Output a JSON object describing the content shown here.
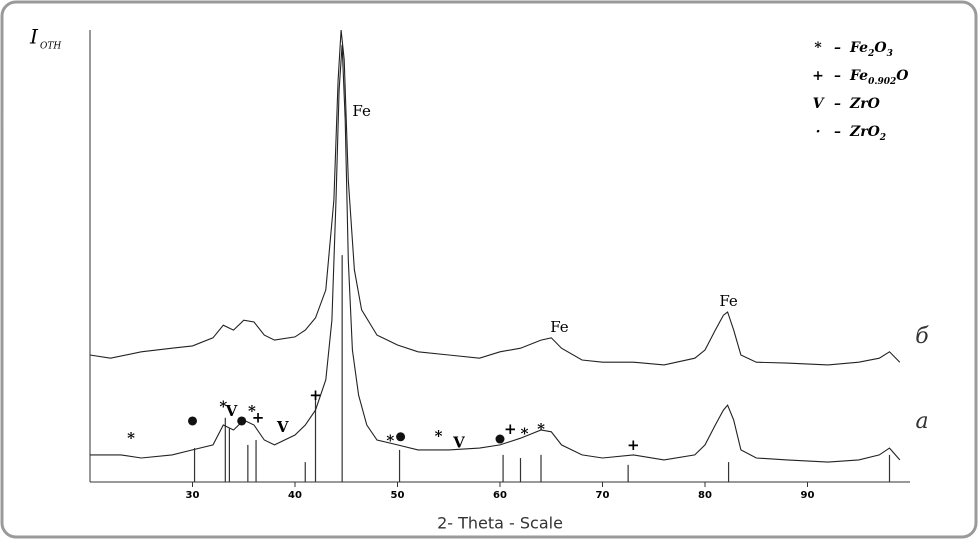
{
  "chart_data": {
    "type": "line",
    "y_label": [
      "I",
      "ОТН"
    ],
    "x_label": "2- Theta - Scale",
    "xlim": [
      20,
      100
    ],
    "ylim": [
      0,
      100
    ],
    "xticks": [
      30,
      40,
      50,
      60,
      70,
      80,
      90
    ],
    "series": [
      {
        "name": "б",
        "color": "#222",
        "x": [
          20,
          22,
          25,
          28,
          30,
          32,
          33,
          34,
          35,
          36,
          37,
          38,
          40,
          41,
          42,
          43,
          43.8,
          44.2,
          44.5,
          44.8,
          45.2,
          45.8,
          46.5,
          48,
          50,
          52,
          55,
          58,
          60,
          62,
          64,
          65,
          66,
          68,
          70,
          73,
          76,
          79,
          80,
          81,
          81.8,
          82.2,
          82.8,
          83.5,
          85,
          88,
          92,
          95,
          97,
          98,
          99
        ],
        "values": [
          28.1,
          27.4,
          28.8,
          29.6,
          30.1,
          31.9,
          34.7,
          33.6,
          35.8,
          35.4,
          32.5,
          31.4,
          32.1,
          33.6,
          36.3,
          42.5,
          62.4,
          88.9,
          100,
          93.4,
          66.8,
          46.9,
          38.1,
          32.5,
          30.3,
          28.8,
          28.1,
          27.4,
          28.8,
          29.6,
          31.4,
          31.9,
          29.6,
          27.0,
          26.5,
          26.5,
          25.9,
          27.4,
          29.2,
          33.6,
          36.9,
          37.6,
          33.6,
          28.1,
          26.5,
          26.3,
          25.9,
          26.5,
          27.4,
          28.8,
          26.5
        ]
      },
      {
        "name": "а",
        "color": "#222",
        "x": [
          20,
          23,
          25,
          28,
          30,
          32,
          33,
          34,
          35,
          36,
          37,
          38,
          40,
          41,
          42,
          43,
          43.6,
          44.0,
          44.3,
          44.6,
          44.9,
          45.2,
          45.6,
          46.2,
          47,
          48,
          50,
          52,
          55,
          58,
          60,
          62,
          64,
          65,
          66,
          68,
          70,
          73,
          76,
          79,
          80,
          81,
          81.8,
          82.2,
          82.8,
          83.5,
          85,
          88,
          92,
          95,
          97,
          98,
          99
        ],
        "values": [
          6.0,
          6.0,
          5.3,
          6.0,
          7.1,
          8.2,
          12.6,
          11.5,
          13.7,
          12.6,
          9.3,
          8.2,
          10.4,
          12.6,
          15.9,
          22.6,
          35.8,
          62.4,
          86.7,
          96.7,
          80.1,
          49.1,
          29.2,
          19.2,
          12.6,
          9.3,
          8.2,
          7.1,
          7.1,
          7.5,
          8.2,
          9.7,
          11.5,
          11.1,
          8.2,
          6.0,
          5.3,
          6.0,
          4.9,
          6.0,
          8.2,
          12.6,
          15.9,
          17.0,
          13.7,
          7.1,
          5.3,
          4.9,
          4.4,
          4.9,
          6.0,
          7.5,
          4.9
        ]
      }
    ],
    "reference_lines": {
      "x": [
        30.2,
        33.2,
        33.6,
        35.4,
        36.2,
        41,
        42,
        44.6,
        50.2,
        60.3,
        62,
        64,
        72.5,
        82.3,
        98
      ],
      "values": [
        7.5,
        14.2,
        11.9,
        8.2,
        9.3,
        4.4,
        19.2,
        50.2,
        7.1,
        6.0,
        5.3,
        6.0,
        3.8,
        4.4,
        6.0
      ]
    },
    "legend": [
      {
        "symbol": "*",
        "formula": [
          "Fe",
          "2",
          "O",
          "3"
        ]
      },
      {
        "symbol": "+",
        "formula": [
          "Fe",
          "0.902",
          "O"
        ]
      },
      {
        "symbol": "V",
        "formula": [
          "ZrO"
        ]
      },
      {
        "symbol": "·",
        "formula": [
          "ZrO",
          "2"
        ]
      }
    ],
    "dash": "–",
    "phase_markers": {
      "phase": [
        0,
        3,
        0,
        2,
        3,
        0,
        1,
        2,
        1,
        0,
        3,
        0,
        2,
        3,
        1,
        0,
        0,
        1
      ],
      "x": [
        24,
        30,
        33,
        33.8,
        34.8,
        35.8,
        36.4,
        38.8,
        42,
        49.3,
        50.3,
        54,
        56,
        60,
        61,
        62.4,
        64,
        73
      ],
      "y": [
        9.5,
        13.5,
        16.5,
        15.5,
        13.5,
        15.5,
        14,
        12,
        19,
        9,
        10,
        10,
        8.5,
        9.5,
        11.5,
        10.5,
        11.5,
        8
      ]
    },
    "peak_labels": {
      "text": [
        "Fe",
        "Fe",
        "Fe"
      ],
      "x": [
        46.5,
        65.8,
        82.3
      ],
      "y": [
        81.9,
        34.1,
        39.8
      ]
    }
  }
}
